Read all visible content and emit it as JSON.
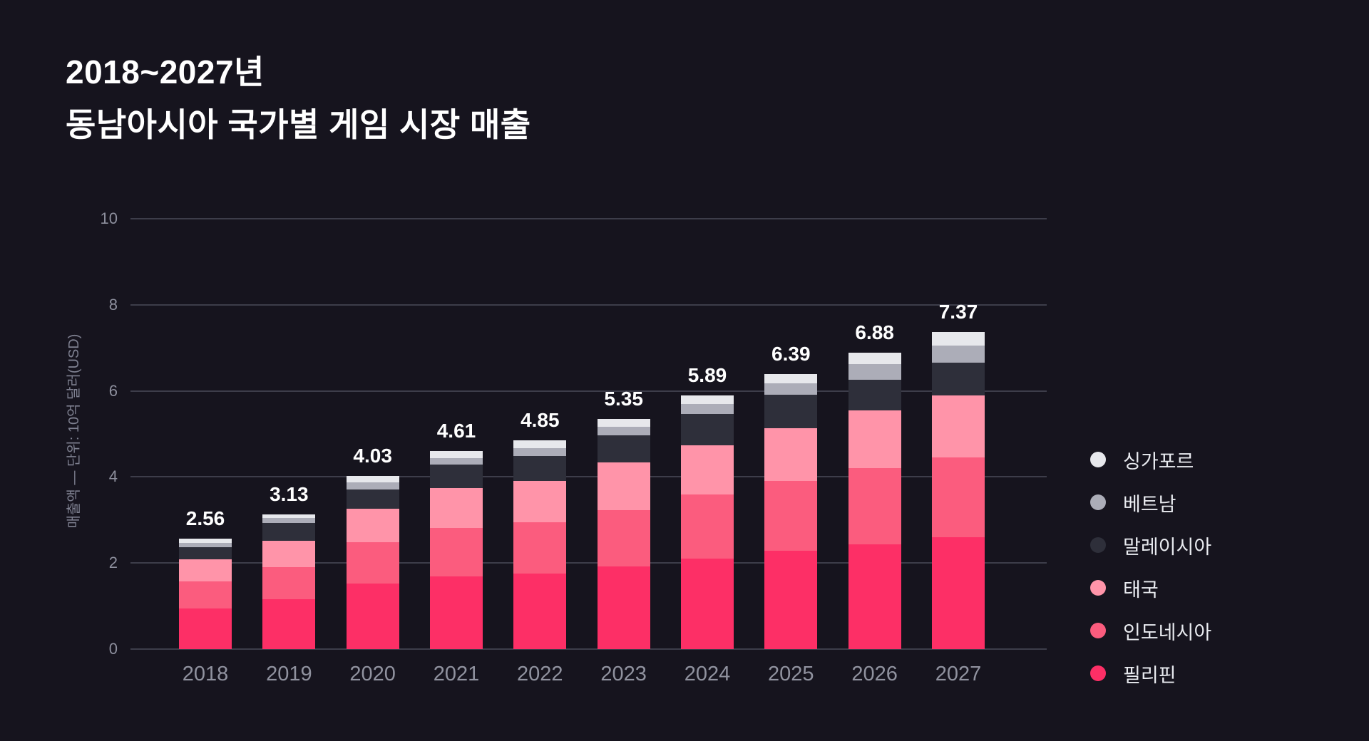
{
  "title": {
    "line1": "2018~2027년",
    "line2": "동남아시아 국가별 게임 시장 매출"
  },
  "y_axis": {
    "label": "매출액 — 단위: 10억 달러(USD)",
    "ticks": [
      "0",
      "2",
      "4",
      "6",
      "8",
      "10"
    ],
    "max": 10
  },
  "legend": [
    {
      "label": "싱가포르",
      "color": "#e7e8ec"
    },
    {
      "label": "베트남",
      "color": "#acadb8"
    },
    {
      "label": "말레이시아",
      "color": "#2e2f3a"
    },
    {
      "label": "태국",
      "color": "#ff94a9"
    },
    {
      "label": "인도네시아",
      "color": "#fb5c7e"
    },
    {
      "label": "필리핀",
      "color": "#fd2f66"
    }
  ],
  "chart_data": {
    "type": "bar",
    "stacked": true,
    "title": "2018~2027년 동남아시아 국가별 게임 시장 매출",
    "ylabel": "매출액 — 단위: 10억 달러(USD)",
    "ylim": [
      0,
      10
    ],
    "grid": true,
    "legend_position": "right",
    "categories": [
      "2018",
      "2019",
      "2020",
      "2021",
      "2022",
      "2023",
      "2024",
      "2025",
      "2026",
      "2027"
    ],
    "series": [
      {
        "name": "필리핀",
        "color": "#fd2f66",
        "values": [
          0.95,
          1.15,
          1.53,
          1.69,
          1.75,
          1.92,
          2.1,
          2.29,
          2.44,
          2.6
        ]
      },
      {
        "name": "인도네시아",
        "color": "#fb5c7e",
        "values": [
          0.62,
          0.76,
          0.95,
          1.13,
          1.2,
          1.31,
          1.5,
          1.61,
          1.77,
          1.86
        ]
      },
      {
        "name": "태국",
        "color": "#ff94a9",
        "values": [
          0.52,
          0.6,
          0.78,
          0.92,
          0.96,
          1.1,
          1.13,
          1.24,
          1.33,
          1.44
        ]
      },
      {
        "name": "말레이시아",
        "color": "#2e2f3a",
        "values": [
          0.27,
          0.42,
          0.45,
          0.54,
          0.58,
          0.63,
          0.73,
          0.77,
          0.72,
          0.75
        ]
      },
      {
        "name": "베트남",
        "color": "#acadb8",
        "values": [
          0.1,
          0.12,
          0.17,
          0.16,
          0.18,
          0.21,
          0.24,
          0.27,
          0.36,
          0.41
        ]
      },
      {
        "name": "싱가포르",
        "color": "#e7e8ec",
        "values": [
          0.1,
          0.08,
          0.15,
          0.17,
          0.18,
          0.18,
          0.19,
          0.21,
          0.26,
          0.31
        ]
      }
    ],
    "totals": [
      "2.56",
      "3.13",
      "4.03",
      "4.61",
      "4.85",
      "5.35",
      "5.89",
      "6.39",
      "6.88",
      "7.37"
    ]
  },
  "colors": {
    "background": "#16141e",
    "gridline": "#3d3d4a",
    "tick_text": "#8e909e",
    "axis_title_text": "#7e8090",
    "total_label_text": "#ffffff",
    "legend_text": "#e9ebf0"
  }
}
